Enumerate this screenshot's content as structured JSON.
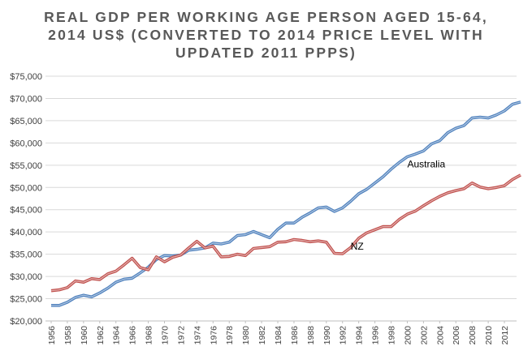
{
  "chart_data": {
    "type": "line",
    "title_lines": [
      "REAL GDP PER WORKING AGE PERSON AGED 15-64,",
      "2014 US$ (CONVERTED TO 2014 PRICE LEVEL WITH",
      "UPDATED 2011 PPPS)"
    ],
    "xlabel": "",
    "ylabel": "",
    "x_range": [
      1956,
      2013
    ],
    "ylim": [
      20000,
      75000
    ],
    "y_ticks": [
      20000,
      25000,
      30000,
      35000,
      40000,
      45000,
      50000,
      55000,
      60000,
      65000,
      70000,
      75000
    ],
    "y_tick_labels": [
      "$20,000",
      "$25,000",
      "$30,000",
      "$35,000",
      "$40,000",
      "$45,000",
      "$50,000",
      "$55,000",
      "$60,000",
      "$65,000",
      "$70,000",
      "$75,000"
    ],
    "x_tick_labels": [
      "1956",
      "1958",
      "1960",
      "1962",
      "1964",
      "1966",
      "1968",
      "1970",
      "1972",
      "1974",
      "1976",
      "1978",
      "1980",
      "1982",
      "1984",
      "1986",
      "1988",
      "1990",
      "1992",
      "1994",
      "1996",
      "1998",
      "2000",
      "2002",
      "2004",
      "2006",
      "2008",
      "2010",
      "2012"
    ],
    "grid": true,
    "series": [
      {
        "name": "Australia",
        "color": "#4f81bd",
        "start_year": 1956,
        "values": [
          23500,
          23500,
          24200,
          25300,
          25800,
          25400,
          26300,
          27400,
          28700,
          29400,
          29600,
          30800,
          32100,
          33800,
          34700,
          34600,
          34800,
          35900,
          36100,
          36400,
          37500,
          37300,
          37700,
          39200,
          39400,
          40100,
          39400,
          38700,
          40600,
          42000,
          42000,
          43300,
          44300,
          45400,
          45600,
          44600,
          45400,
          46900,
          48600,
          49600,
          51000,
          52400,
          54100,
          55600,
          56900,
          57500,
          58200,
          59800,
          60500,
          62300,
          63300,
          63900,
          65600,
          65800,
          65600,
          66300,
          67200,
          68700,
          69200
        ]
      },
      {
        "name": "NZ",
        "color": "#c0504d",
        "start_year": 1956,
        "values": [
          26800,
          27000,
          27500,
          29000,
          28700,
          29500,
          29300,
          30600,
          31200,
          32600,
          34100,
          32000,
          31500,
          34400,
          33300,
          34300,
          34800,
          36400,
          37900,
          36400,
          36800,
          34400,
          34500,
          35000,
          34700,
          36300,
          36500,
          36700,
          37700,
          37800,
          38300,
          38100,
          37800,
          38000,
          37700,
          35200,
          35100,
          36500,
          38600,
          39800,
          40500,
          41200,
          41200,
          42800,
          44000,
          44700,
          45900,
          47000,
          48000,
          48800,
          49300,
          49700,
          51000,
          50100,
          49700,
          50000,
          50400,
          51800,
          52800
        ]
      }
    ],
    "annotations": [
      {
        "text": "Australia",
        "x": 2000,
        "y": 54500
      },
      {
        "text": "NZ",
        "x": 1993,
        "y": 36000
      }
    ]
  }
}
